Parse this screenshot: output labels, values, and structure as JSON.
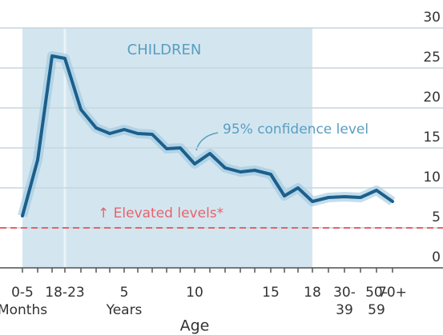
{
  "chart_data": {
    "type": "line",
    "categories": [
      [
        "0-5",
        "Months"
      ],
      null,
      null,
      [
        "18-23"
      ],
      null,
      null,
      null,
      [
        "5",
        "Years"
      ],
      null,
      null,
      null,
      null,
      [
        "10"
      ],
      null,
      null,
      null,
      null,
      [
        "15"
      ],
      null,
      null,
      [
        "18"
      ],
      null,
      [
        "30-",
        "39"
      ],
      null,
      [
        "50-",
        "59"
      ],
      [
        "70+"
      ]
    ],
    "series": [
      {
        "color": "#1b5f8c",
        "values": [
          6.5,
          13.5,
          26.5,
          26.2,
          19.8,
          17.5,
          16.8,
          17.3,
          16.8,
          16.7,
          14.9,
          15,
          13,
          14.3,
          12.5,
          12,
          12.2,
          11.7,
          9,
          10,
          8.3,
          8.8,
          8.9,
          8.8,
          9.7,
          8.3
        ]
      }
    ],
    "ylim": [
      0,
      30
    ],
    "yticks": [
      0,
      5,
      10,
      15,
      20,
      25,
      30
    ],
    "grid": true,
    "xlabel": "Age",
    "region_label": "CHILDREN",
    "band_label": "95% confidence level",
    "threshold": {
      "label": "↑ Elevated levels*",
      "value": 5,
      "color": "#e8626a"
    }
  }
}
